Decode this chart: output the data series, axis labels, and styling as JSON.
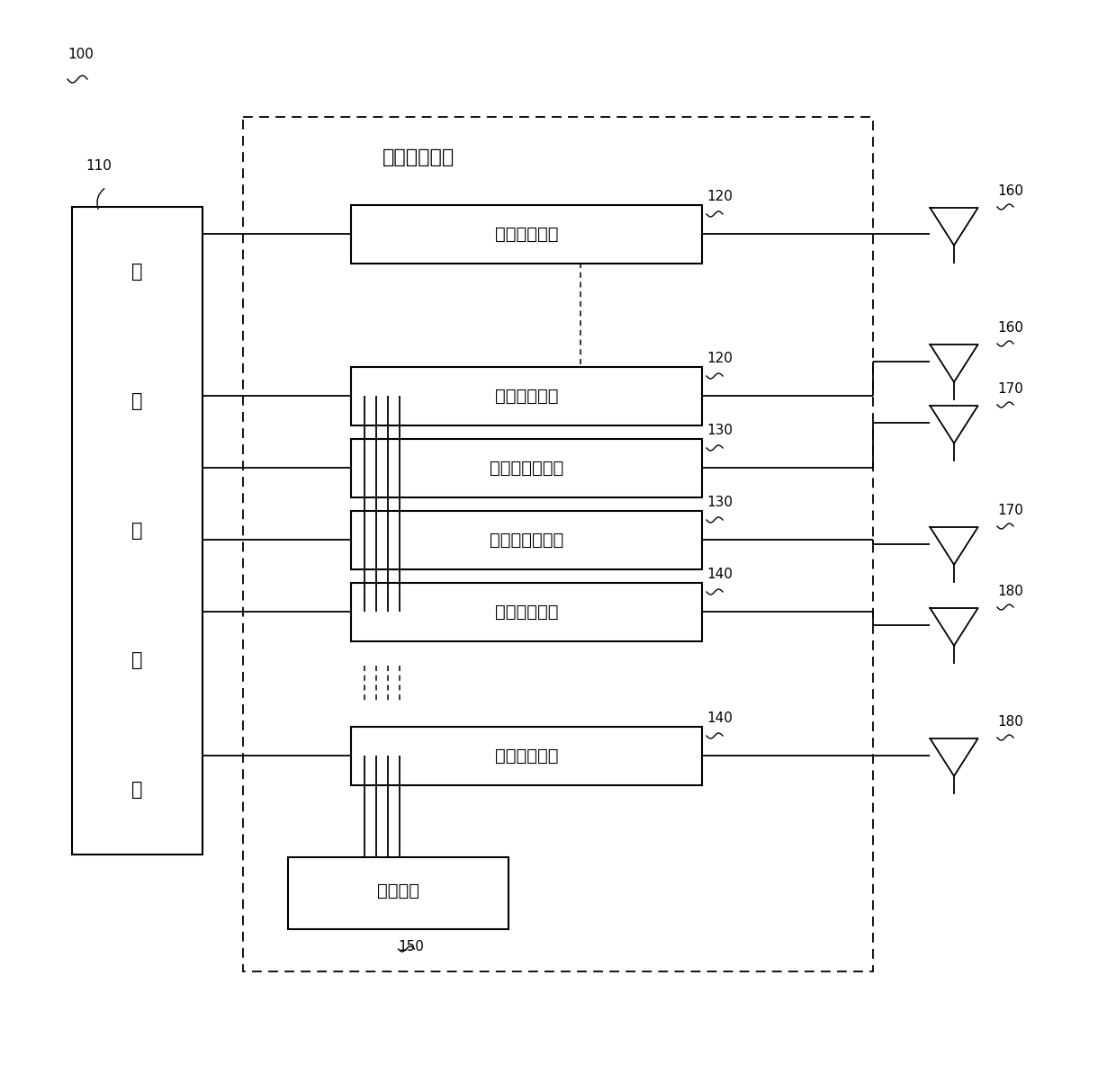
{
  "bg_color": "#ffffff",
  "label_100": "100",
  "label_110": "110",
  "label_120": "120",
  "label_130": "130",
  "label_140": "140",
  "label_150": "150",
  "label_160": "160",
  "label_170": "170",
  "label_180": "180",
  "text_base_station": "基站控制器",
  "text_rf_unit": "第一射频单元",
  "text_wake_module": "唤醒射频模块",
  "text_field_module": "场定位射频模块",
  "text_data_module": "数据射频模块",
  "text_power_module": "电源模块"
}
